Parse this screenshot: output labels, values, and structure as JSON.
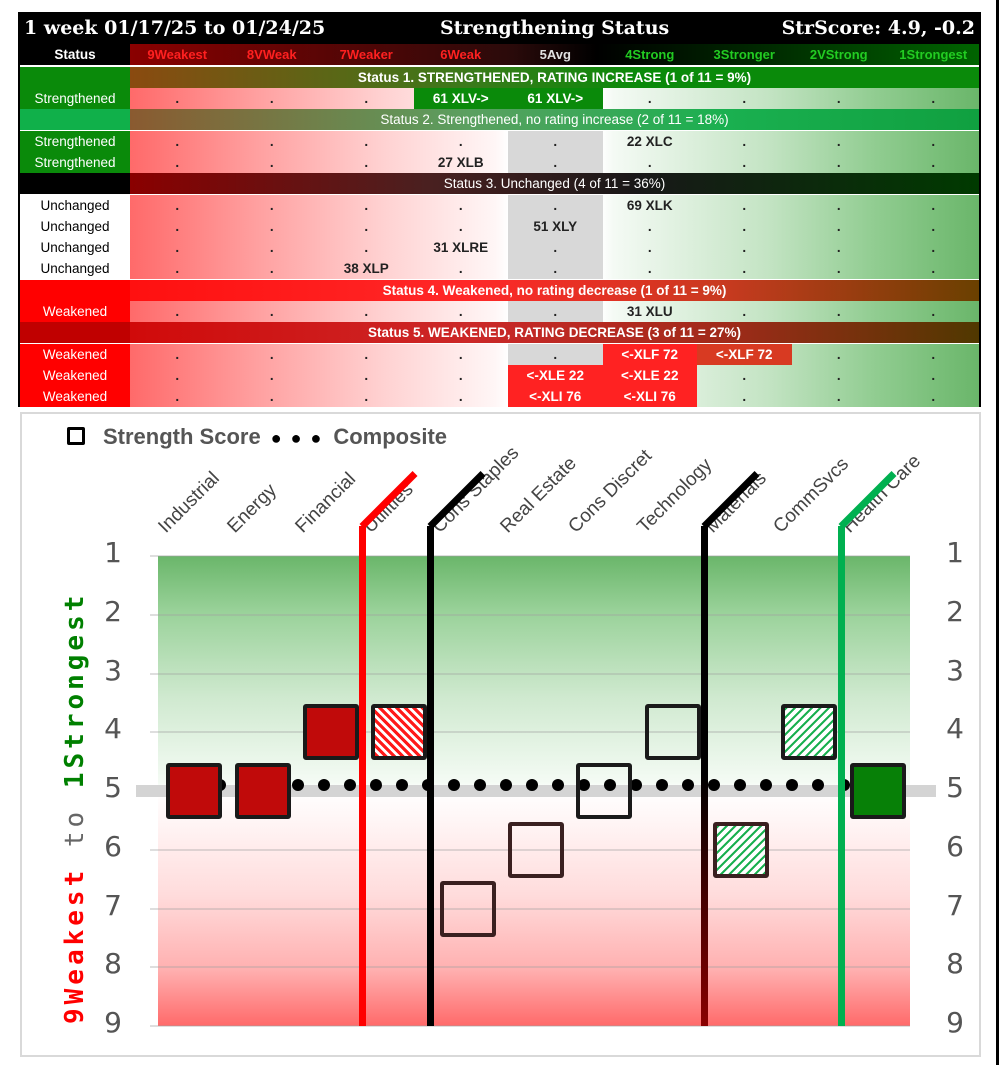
{
  "table": {
    "title_left": "1 week 01/17/25 to 01/24/25",
    "title_center": "Strengthening Status",
    "title_right": "StrScore: 4.9, -0.2",
    "status_header": "Status",
    "columns": [
      {
        "label": "9Weakest",
        "color": "#ff2020"
      },
      {
        "label": "8VWeak",
        "color": "#ff2020"
      },
      {
        "label": "7Weaker",
        "color": "#ff2020"
      },
      {
        "label": "6Weak",
        "color": "#ff2020"
      },
      {
        "label": "5Avg",
        "color": "#e0e0e0"
      },
      {
        "label": "4Strong",
        "color": "#22cc22"
      },
      {
        "label": "3Stronger",
        "color": "#22cc22"
      },
      {
        "label": "2VStrong",
        "color": "#22cc22"
      },
      {
        "label": "1Strongest",
        "color": "#22cc22"
      }
    ],
    "bands": [
      {
        "label": "Status 1. STRENGTHENED, RATING INCREASE (1 of 11 = 9%)"
      },
      {
        "label": "Status 2. Strengthened, no rating increase (2 of 11 = 18%)"
      },
      {
        "label": "Status 3. Unchanged (4 of 11 = 36%)"
      },
      {
        "label": "Status 4. Weakened, no rating decrease (1 of 11 = 9%)"
      },
      {
        "label": "Status 5. WEAKENED, RATING DECREASE (3 of 11 = 27%)"
      }
    ],
    "rows": [
      {
        "status": "Strengthened",
        "cells": [
          ".",
          ".",
          ".",
          "61 XLV->",
          "61 XLV->",
          ".",
          ".",
          ".",
          "."
        ]
      },
      {
        "status": "Strengthened",
        "cells": [
          ".",
          ".",
          ".",
          ".",
          ".",
          "22 XLC",
          ".",
          ".",
          "."
        ]
      },
      {
        "status": "Strengthened",
        "cells": [
          ".",
          ".",
          ".",
          "27 XLB",
          ".",
          ".",
          ".",
          ".",
          "."
        ]
      },
      {
        "status": "Unchanged",
        "cells": [
          ".",
          ".",
          ".",
          ".",
          ".",
          "69 XLK",
          ".",
          ".",
          "."
        ]
      },
      {
        "status": "Unchanged",
        "cells": [
          ".",
          ".",
          ".",
          ".",
          "51 XLY",
          ".",
          ".",
          ".",
          "."
        ]
      },
      {
        "status": "Unchanged",
        "cells": [
          ".",
          ".",
          ".",
          "31 XLRE",
          ".",
          ".",
          ".",
          ".",
          "."
        ]
      },
      {
        "status": "Unchanged",
        "cells": [
          ".",
          ".",
          "38 XLP",
          ".",
          ".",
          ".",
          ".",
          ".",
          "."
        ]
      },
      {
        "status": "Weakened",
        "cells": [
          ".",
          ".",
          ".",
          ".",
          ".",
          "31 XLU",
          ".",
          ".",
          "."
        ]
      },
      {
        "status": "Weakened",
        "cells": [
          ".",
          ".",
          ".",
          ".",
          ".",
          "<-XLF 72",
          "<-XLF 72",
          ".",
          "."
        ]
      },
      {
        "status": "Weakened",
        "cells": [
          ".",
          ".",
          ".",
          ".",
          "<-XLE 22",
          "<-XLE 22",
          ".",
          ".",
          "."
        ]
      },
      {
        "status": "Weakened",
        "cells": [
          ".",
          ".",
          ".",
          ".",
          "<-XLI 76",
          "<-XLI 76",
          ".",
          ".",
          "."
        ]
      }
    ]
  },
  "chart": {
    "legend_strength": "Strength Score",
    "legend_dots": "● ● ●",
    "legend_composite": "Composite",
    "y_title_red": "9Weakest",
    "y_title_mid": "to",
    "y_title_green": "1Strongest",
    "y_ticks": [
      "1",
      "2",
      "3",
      "4",
      "5",
      "6",
      "7",
      "8",
      "9"
    ]
  },
  "chart_data": {
    "type": "scatter",
    "title": "Strength Score ● ● ● Composite",
    "xlabel": "",
    "ylabel": "9Weakest to 1Strongest",
    "ylim": [
      9,
      1
    ],
    "categories": [
      "Industrial",
      "Energy",
      "Financial",
      "Utilities",
      "Cons Staples",
      "Real Estate",
      "Cons Discret",
      "Technology",
      "Materials",
      "CommSvcs",
      "Health Care"
    ],
    "series": [
      {
        "name": "Strength Score",
        "values": [
          5,
          5,
          4,
          4,
          7,
          6,
          5,
          4,
          6,
          4,
          5
        ],
        "fills": [
          "solid-red",
          "solid-red",
          "solid-red",
          "hatch-red",
          "none",
          "none",
          "none",
          "none",
          "hatch-green",
          "hatch-green",
          "solid-green"
        ]
      },
      {
        "name": "Composite",
        "values": [
          4.9,
          4.9,
          4.9,
          4.9,
          4.9,
          4.9,
          4.9,
          4.9,
          4.9,
          4.9,
          4.9
        ]
      }
    ],
    "reference_line": {
      "y": 5,
      "color": "#d4d4d4"
    },
    "marker_lines": [
      {
        "after_category": "Financial",
        "color": "#ff0000"
      },
      {
        "after_category": "Utilities",
        "color": "#000000"
      },
      {
        "after_category": "Technology",
        "color": "#000000"
      },
      {
        "after_category": "CommSvcs",
        "color": "#00b050"
      }
    ],
    "grid": true
  }
}
